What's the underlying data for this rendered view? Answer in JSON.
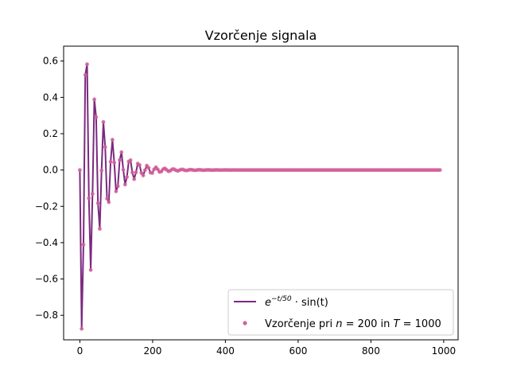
{
  "chart_data": {
    "type": "line",
    "title": "Vzorčenje signala",
    "xlabel": "",
    "ylabel": "",
    "xlim": [
      -44.6,
      1039.6
    ],
    "ylim": [
      -0.935,
      0.682
    ],
    "xticks": [
      0,
      200,
      400,
      600,
      800,
      1000
    ],
    "xtick_labels": [
      "0",
      "200",
      "400",
      "600",
      "800",
      "1000"
    ],
    "yticks": [
      -0.8,
      -0.6,
      -0.4,
      -0.2,
      0.0,
      0.2,
      0.4,
      0.6
    ],
    "ytick_labels": [
      "−0.8",
      "−0.6",
      "−0.4",
      "−0.2",
      "0.0",
      "0.2",
      "0.4",
      "0.6"
    ],
    "grid": false,
    "legend_position": "lower-right",
    "series": [
      {
        "name": "e^(−t/50) · sin(t)",
        "kind": "line",
        "function": "exp(-t/50)*sin(t)",
        "t_range": [
          0,
          990
        ],
        "num_points": 200,
        "color": "#7b2a7f"
      },
      {
        "name": "Vzorčenje pri n = 200 in T = 1000",
        "kind": "scatter",
        "function": "exp(-t/50)*sin(t)",
        "t_range": [
          0,
          990
        ],
        "num_points": 200,
        "color": "#d4609a"
      }
    ]
  },
  "legend": {
    "line_label": {
      "base": "e",
      "sup": "−t/50",
      "rest": " · sin(t)"
    },
    "scatter_label": {
      "pre": "Vzorčenje pri ",
      "n": "n",
      "eq1": " = 200 in ",
      "T": "T",
      "eq2": " = 1000"
    }
  }
}
